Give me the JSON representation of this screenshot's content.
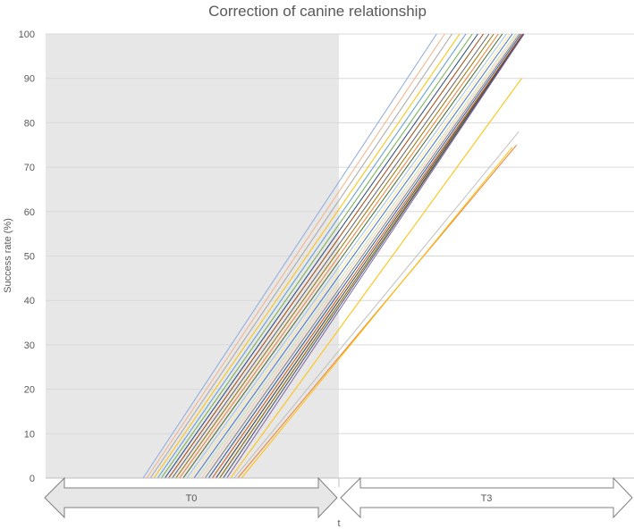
{
  "chart_data": {
    "type": "line",
    "title": "Correction of canine relationship",
    "xlabel": "t",
    "ylabel": "Success rate (%)",
    "ylim": [
      0,
      100
    ],
    "yticks": [
      0,
      10,
      20,
      30,
      40,
      50,
      60,
      70,
      80,
      90,
      100
    ],
    "grid": true,
    "x_categories": [
      "T0",
      "T3"
    ],
    "shaded_period": "T0",
    "legend": "none",
    "series": [
      {
        "values": [
          0,
          66.7
        ],
        "end_value": 100,
        "color": "#8faadc"
      },
      {
        "values": [
          0,
          64.5
        ],
        "end_value": 100,
        "color": "#f4b183"
      },
      {
        "values": [
          0,
          62.5
        ],
        "end_value": 100,
        "color": "#a5a5a5"
      },
      {
        "values": [
          0,
          60.5
        ],
        "end_value": 100,
        "color": "#ffc000"
      },
      {
        "values": [
          0,
          58.8
        ],
        "end_value": 100,
        "color": "#5b9bd5"
      },
      {
        "values": [
          0,
          57.1
        ],
        "end_value": 100,
        "color": "#70ad47"
      },
      {
        "values": [
          0,
          55.6
        ],
        "end_value": 100,
        "color": "#264478"
      },
      {
        "values": [
          0,
          54.1
        ],
        "end_value": 100,
        "color": "#9e480e"
      },
      {
        "values": [
          0,
          52.6
        ],
        "end_value": 100,
        "color": "#636363"
      },
      {
        "values": [
          0,
          51.3
        ],
        "end_value": 100,
        "color": "#997300"
      },
      {
        "values": [
          0,
          50.0
        ],
        "end_value": 100,
        "color": "#ed7d31"
      },
      {
        "values": [
          0,
          48.8
        ],
        "end_value": 100,
        "color": "#43682b"
      },
      {
        "values": [
          0,
          47.6
        ],
        "end_value": 100,
        "color": "#9dc3e6"
      },
      {
        "values": [
          0,
          46.5
        ],
        "end_value": 100,
        "color": "#ffe699"
      },
      {
        "values": [
          0,
          45.5
        ],
        "end_value": 100,
        "color": "#4472c4"
      },
      {
        "values": [
          0,
          44.4
        ],
        "end_value": 100,
        "color": "#c5e0b4"
      },
      {
        "values": [
          0,
          43.5
        ],
        "end_value": 100,
        "color": "#f8cbad"
      },
      {
        "values": [
          0,
          42.6
        ],
        "end_value": 100,
        "color": "#7f7f7f"
      },
      {
        "values": [
          0,
          41.7
        ],
        "end_value": 100,
        "color": "#2f5597"
      },
      {
        "values": [
          0,
          40.8
        ],
        "end_value": 100,
        "color": "#c55a11"
      },
      {
        "values": [
          0,
          40.0
        ],
        "end_value": 100,
        "color": "#404040"
      },
      {
        "values": [
          0,
          39.2
        ],
        "end_value": 100,
        "color": "#7f6000"
      },
      {
        "values": [
          0,
          38.5
        ],
        "end_value": 100,
        "color": "#44546a"
      },
      {
        "values": [
          0,
          37.7
        ],
        "end_value": 100,
        "color": "#8064a2"
      },
      {
        "values": [
          0,
          33.5
        ],
        "end_value": 90,
        "color": "#ffc000"
      },
      {
        "values": [
          0,
          28.7
        ],
        "end_value": 78,
        "color": "#bfbfbf"
      },
      {
        "values": [
          0,
          27.2
        ],
        "end_value": 75,
        "color": "#ed7d31"
      },
      {
        "values": [
          0,
          26.8
        ],
        "end_value": 74.5,
        "color": "#ffc000"
      }
    ]
  }
}
